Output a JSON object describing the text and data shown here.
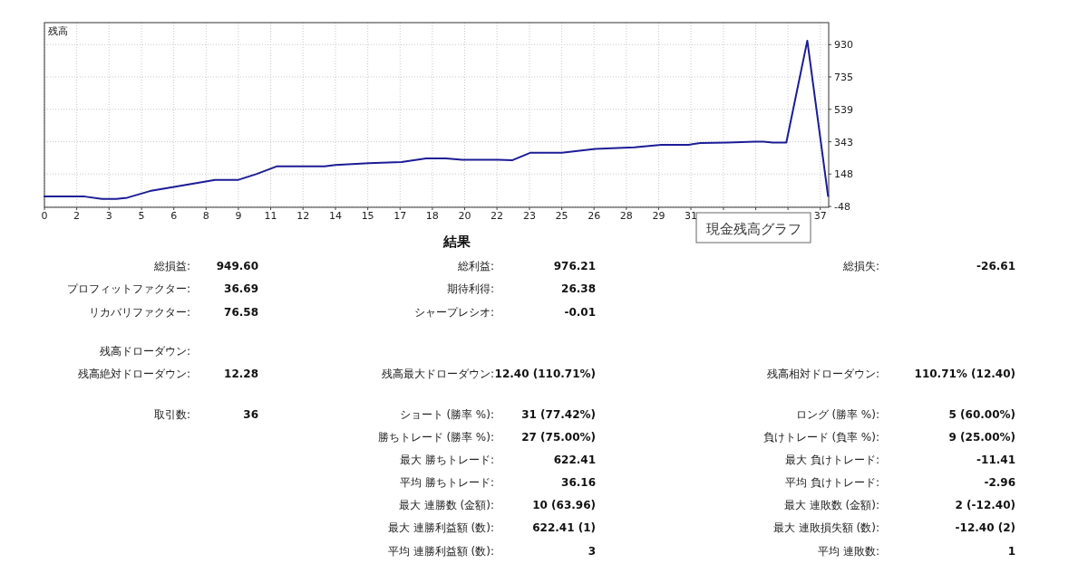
{
  "chart_data": {
    "type": "line",
    "subtitle": "結果",
    "x": [
      0,
      1.92,
      2.74,
      3.43,
      3.95,
      5.03,
      8.14,
      9.22,
      10.13,
      11.07,
      13.36,
      13.88,
      15.48,
      17.03,
      18.2,
      19.15,
      19.92,
      21.65,
      22.3,
      23.16,
      24.67,
      26.27,
      28.13,
      29.42,
      30.72,
      31.28,
      32.57,
      33.87,
      34.3,
      34.73,
      35.38,
      36.38,
      37.37
    ],
    "series": [
      {
        "color": "#1c1c96",
        "values": [
          12,
          12,
          -3,
          -3,
          5,
          45,
          112,
          112,
          149,
          194,
          194,
          203,
          214,
          220,
          242,
          242,
          234,
          234,
          231,
          276,
          276,
          300,
          310,
          325,
          325,
          335,
          338,
          343,
          343,
          338,
          338,
          954,
          15
        ]
      }
    ],
    "xlim": [
      0,
      37.4
    ],
    "ylim": [
      -53,
      1063
    ],
    "xticks": [
      {
        "value": 0,
        "label": "0"
      },
      {
        "value": 1.54,
        "label": "2"
      },
      {
        "value": 3.08,
        "label": "3"
      },
      {
        "value": 4.63,
        "label": "5"
      },
      {
        "value": 6.17,
        "label": "6"
      },
      {
        "value": 7.71,
        "label": "8"
      },
      {
        "value": 9.25,
        "label": "9"
      },
      {
        "value": 10.79,
        "label": "11"
      },
      {
        "value": 12.33,
        "label": "12"
      },
      {
        "value": 13.88,
        "label": "14"
      },
      {
        "value": 15.42,
        "label": "15"
      },
      {
        "value": 16.96,
        "label": "17"
      },
      {
        "value": 18.5,
        "label": "18"
      },
      {
        "value": 20.04,
        "label": "20"
      },
      {
        "value": 21.58,
        "label": "22"
      },
      {
        "value": 23.13,
        "label": "23"
      },
      {
        "value": 24.67,
        "label": "25"
      },
      {
        "value": 26.21,
        "label": "26"
      },
      {
        "value": 27.75,
        "label": "28"
      },
      {
        "value": 29.29,
        "label": "29"
      },
      {
        "value": 30.83,
        "label": "31"
      },
      {
        "value": 32.38,
        "label": null
      },
      {
        "value": 33.92,
        "label": null
      },
      {
        "value": 35.46,
        "label": null
      },
      {
        "value": 37,
        "label": "37"
      }
    ],
    "yticks": [
      -48,
      148,
      343,
      539,
      735,
      930
    ],
    "grid": true,
    "marker": "none",
    "line_style": "solid",
    "annotations": [
      "残高",
      "現金残高グラフ",
      "総損益:",
      "949.60",
      "総利益:",
      "976.21",
      "総損失:",
      "-26.61",
      "プロフィットファクター:",
      "36.69",
      "期待利得:",
      "26.38",
      "リカバリファクター:",
      "76.58",
      "シャープレシオ:",
      "-0.01",
      "残高ドローダウン:",
      "残高絶対ドローダウン:",
      "12.28",
      "残高最大ドローダウン:",
      "12.40 (110.71%)",
      "残高相対ドローダウン:",
      "110.71% (12.40)",
      "取引数:",
      "36",
      "ショート (勝率 %):",
      "31 (77.42%)",
      "ロング (勝率 %):",
      "5 (60.00%)",
      "勝ちトレード (勝率 %):",
      "27 (75.00%)",
      "負けトレード (負率 %):",
      "9 (25.00%)",
      "最大 勝ちトレード:",
      "622.41",
      "最大 負けトレード:",
      "-11.41",
      "平均 勝ちトレード:",
      "36.16",
      "平均 負けトレード:",
      "-2.96",
      "最大 連勝数 (金額):",
      "10 (63.96)",
      "最大 連敗数 (金額):",
      "2 (-12.40)",
      "最大 連勝利益額 (数):",
      "622.41 (1)",
      "最大 連敗損失額 (数):",
      "-12.40 (2)",
      "平均 連勝利益額 (数):",
      "3",
      "平均 連敗数:",
      "1"
    ]
  }
}
